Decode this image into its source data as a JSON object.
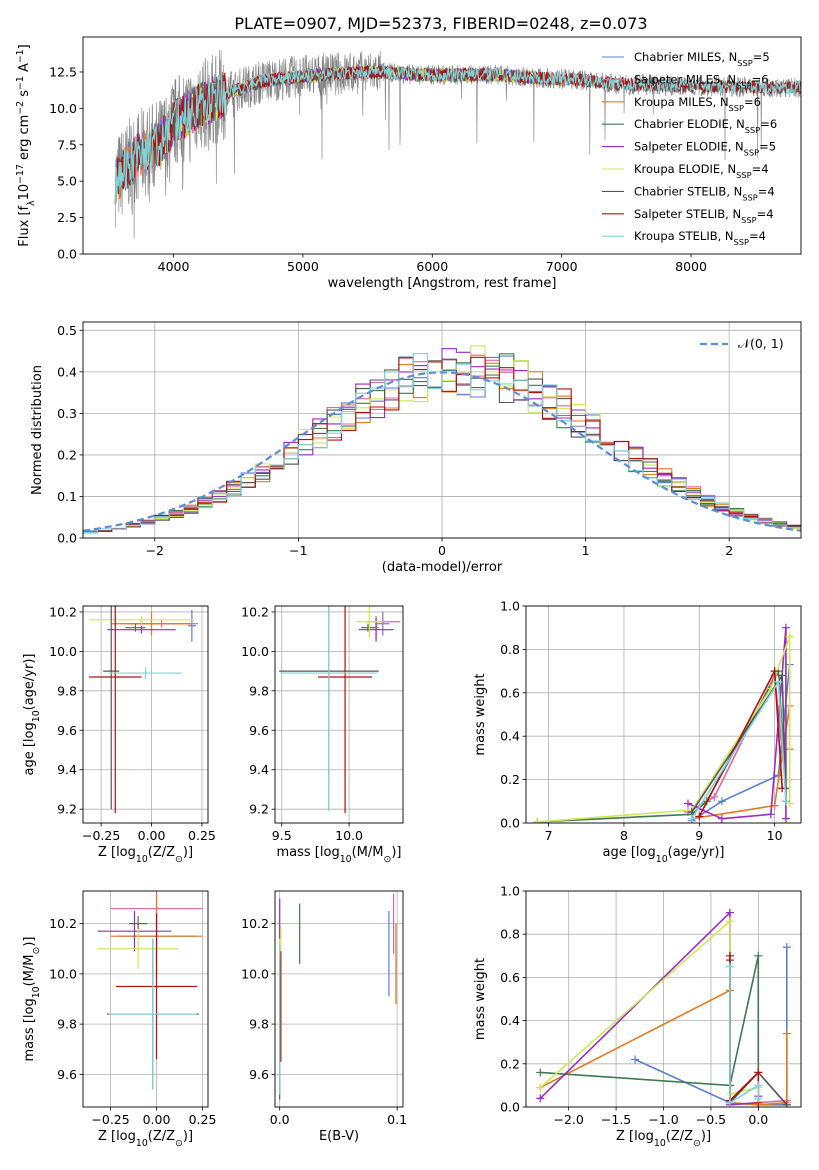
{
  "figure_title": "PLATE=0907, MJD=52373, FIBERID=0248, z=0.073",
  "colors": {
    "Chabrier MILES": "#5b7fd0",
    "Salpeter MILES": "#e066a8",
    "Kroupa MILES": "#e07a1f",
    "Chabrier ELODIE": "#3e7a4e",
    "Salpeter ELODIE": "#9a2ac2",
    "Kroupa ELODIE": "#cce85a",
    "Chabrier STELIB": "#555555",
    "Salpeter STELIB": "#b01010",
    "Kroupa STELIB": "#7fd4d8",
    "data": "#808080",
    "gaussian": "#5b8ed8",
    "grid": "#b0b0b0"
  },
  "chart_data": [
    {
      "id": "spectrum",
      "type": "line",
      "title": "PLATE=0907, MJD=52373, FIBERID=0248, z=0.073",
      "xlabel": "wavelength [Angstrom, rest frame]",
      "ylabel": "Flux [f",
      "ylabel_sub": "λ",
      "ylabel_rest": "10",
      "ylabel_sup1": "−17",
      "ylabel_rest2": " erg cm",
      "ylabel_sup2": "−2",
      "ylabel_rest3": " s",
      "ylabel_sup3": "−1",
      "ylabel_rest4": " A",
      "ylabel_sup4": "−1",
      "ylabel_end": "]",
      "xlim": [
        3300,
        8850
      ],
      "ylim": [
        0,
        14.9
      ],
      "xticks": [
        4000,
        5000,
        6000,
        7000,
        8000
      ],
      "yticks": [
        0.0,
        2.5,
        5.0,
        7.5,
        10.0,
        12.5
      ],
      "ytick_labels": [
        "0.0",
        "2.5",
        "5.0",
        "7.5",
        "10.0",
        "12.5"
      ],
      "legend": [
        {
          "label": "Chabrier MILES, N",
          "sub": "SSP",
          "tail": "=5",
          "key": "Chabrier MILES"
        },
        {
          "label": "Salpeter MILES, N",
          "sub": "SSP",
          "tail": "=6",
          "key": "Salpeter MILES"
        },
        {
          "label": "Kroupa MILES, N",
          "sub": "SSP",
          "tail": "=6",
          "key": "Kroupa MILES"
        },
        {
          "label": "Chabrier ELODIE, N",
          "sub": "SSP",
          "tail": "=6",
          "key": "Chabrier ELODIE"
        },
        {
          "label": "Salpeter ELODIE, N",
          "sub": "SSP",
          "tail": "=5",
          "key": "Salpeter ELODIE"
        },
        {
          "label": "Kroupa ELODIE, N",
          "sub": "SSP",
          "tail": "=4",
          "key": "Kroupa ELODIE"
        },
        {
          "label": "Chabrier STELIB, N",
          "sub": "SSP",
          "tail": "=4",
          "key": "Chabrier STELIB"
        },
        {
          "label": "Salpeter STELIB, N",
          "sub": "SSP",
          "tail": "=4",
          "key": "Salpeter STELIB"
        },
        {
          "label": "Kroupa STELIB, N",
          "sub": "SSP",
          "tail": "=4",
          "key": "Kroupa STELIB"
        }
      ],
      "legend_placement": "top-right",
      "data_range": [
        3550,
        8850
      ],
      "continuum": [
        [
          3550,
          5.0
        ],
        [
          3700,
          6.6
        ],
        [
          3900,
          7.6
        ],
        [
          4000,
          9.0
        ],
        [
          4200,
          10.2
        ],
        [
          4400,
          11.0
        ],
        [
          4700,
          11.9
        ],
        [
          5000,
          12.2
        ],
        [
          5300,
          12.4
        ],
        [
          5600,
          12.5
        ],
        [
          5900,
          12.3
        ],
        [
          6200,
          12.3
        ],
        [
          6500,
          12.3
        ],
        [
          6800,
          12.1
        ],
        [
          7100,
          12.0
        ],
        [
          7400,
          11.7
        ],
        [
          7700,
          11.6
        ],
        [
          8000,
          11.5
        ],
        [
          8300,
          11.5
        ],
        [
          8850,
          11.4
        ]
      ],
      "model_ranges": {
        "Chabrier MILES": [
          3550,
          7400
        ],
        "Salpeter MILES": [
          3550,
          7400
        ],
        "Kroupa MILES": [
          3550,
          7400
        ],
        "Chabrier ELODIE": [
          3900,
          6800
        ],
        "Salpeter ELODIE": [
          3900,
          6800
        ],
        "Kroupa ELODIE": [
          3900,
          6800
        ],
        "Chabrier STELIB": [
          3550,
          8850
        ],
        "Salpeter STELIB": [
          3550,
          8850
        ],
        "Kroupa STELIB": [
          3550,
          8850
        ]
      },
      "grid": false
    },
    {
      "id": "residuals",
      "type": "histogram",
      "xlabel": "(data-model)/error",
      "ylabel": "Normed distribution",
      "xlim": [
        -2.5,
        2.5
      ],
      "ylim": [
        0,
        0.52
      ],
      "xticks": [
        -2,
        -1,
        0,
        1,
        2
      ],
      "xtick_labels": [
        "−2",
        "−1",
        "0",
        "1",
        "2"
      ],
      "yticks": [
        0.0,
        0.1,
        0.2,
        0.3,
        0.4,
        0.5
      ],
      "ytick_labels": [
        "0.0",
        "0.1",
        "0.2",
        "0.3",
        "0.4",
        "0.5"
      ],
      "bin_width": 0.1,
      "legend_label": "𝒩(0, 1)",
      "legend_placement": "top-right",
      "grid": true
    },
    {
      "id": "age-vs-z",
      "type": "errorbar",
      "xlabel": "Z [log",
      "xlabel_sub": "10",
      "xlabel_tail": "(Z/Z",
      "xlabel_sub2": "⊙",
      "xlabel_end": ")]",
      "ylabel": "age  [log",
      "ylabel_sub": "10",
      "ylabel_tail": "(age/yr)]",
      "xlim": [
        -0.34,
        0.28
      ],
      "ylim": [
        9.13,
        10.23
      ],
      "xticks": [
        -0.25,
        0.0,
        0.25
      ],
      "xtick_labels": [
        "−0.25",
        "0.00",
        "0.25"
      ],
      "yticks": [
        9.2,
        9.4,
        9.6,
        9.8,
        10.0,
        10.2
      ],
      "ytick_labels": [
        "9.2",
        "9.4",
        "9.6",
        "9.8",
        "10.0",
        "10.2"
      ],
      "points": [
        {
          "key": "Chabrier MILES",
          "x": 0.2,
          "y": 10.13,
          "xerr": 0.02,
          "yerr": 0.08
        },
        {
          "key": "Salpeter MILES",
          "x": 0.05,
          "y": 10.14,
          "xerr": 0.18,
          "yerr": 0.02
        },
        {
          "key": "Kroupa MILES",
          "x": 0.0,
          "y": 10.14,
          "xerr": 0.2,
          "yerr": 0.06
        },
        {
          "key": "Chabrier ELODIE",
          "x": -0.08,
          "y": 10.12,
          "xerr": 0.05,
          "yerr": 0.02
        },
        {
          "key": "Salpeter ELODIE",
          "x": -0.05,
          "y": 10.11,
          "xerr": 0.17,
          "yerr": 0.02
        },
        {
          "key": "Kroupa ELODIE",
          "x": -0.05,
          "y": 10.16,
          "xerr": 0.26,
          "yerr": 0.02
        },
        {
          "key": "Chabrier STELIB",
          "x": -0.2,
          "y": 9.9,
          "xerr": 0.04,
          "yerr": 0.7
        },
        {
          "key": "Salpeter STELIB",
          "x": -0.18,
          "y": 9.87,
          "xerr": 0.13,
          "yerr": 0.69
        },
        {
          "key": "Kroupa STELIB",
          "x": -0.03,
          "y": 9.89,
          "xerr": 0.18,
          "yerr": 0.03
        }
      ],
      "grid": true
    },
    {
      "id": "age-vs-mass",
      "type": "errorbar",
      "xlabel": "mass [log",
      "xlabel_sub": "10",
      "xlabel_tail": "(M/M",
      "xlabel_sub2": "⊙",
      "xlabel_end": ")]",
      "xlim": [
        9.45,
        10.4
      ],
      "ylim": [
        9.13,
        10.23
      ],
      "xticks": [
        9.5,
        10.0
      ],
      "xtick_labels": [
        "9.5",
        "10.0"
      ],
      "yticks": [
        9.2,
        9.4,
        9.6,
        9.8,
        10.0,
        10.2
      ],
      "ytick_labels": [
        "9.2",
        "9.4",
        "9.6",
        "9.8",
        "10.0",
        "10.2"
      ],
      "points": [
        {
          "key": "Chabrier MILES",
          "x": 10.25,
          "y": 10.14,
          "xerr": 0.05,
          "yerr": 0.06
        },
        {
          "key": "Salpeter MILES",
          "x": 10.25,
          "y": 10.15,
          "xerr": 0.13,
          "yerr": 0.02
        },
        {
          "key": "Kroupa MILES",
          "x": 10.2,
          "y": 10.12,
          "xerr": 0.02,
          "yerr": 0.06
        },
        {
          "key": "Chabrier ELODIE",
          "x": 10.14,
          "y": 10.12,
          "xerr": 0.05,
          "yerr": 0.02
        },
        {
          "key": "Salpeter ELODIE",
          "x": 10.2,
          "y": 10.11,
          "xerr": 0.13,
          "yerr": 0.06
        },
        {
          "key": "Kroupa ELODIE",
          "x": 10.15,
          "y": 10.15,
          "xerr": 0.1,
          "yerr": 0.08
        },
        {
          "key": "Chabrier STELIB",
          "x": 9.85,
          "y": 9.9,
          "xerr": 0.37,
          "yerr": 0.7
        },
        {
          "key": "Salpeter STELIB",
          "x": 9.97,
          "y": 9.87,
          "xerr": 0.2,
          "yerr": 0.69
        },
        {
          "key": "Kroupa STELIB",
          "x": 9.85,
          "y": 9.89,
          "xerr": 0.36,
          "yerr": 0.7
        }
      ],
      "grid": true
    },
    {
      "id": "weight-vs-age",
      "type": "line",
      "xlabel": "age  [log",
      "xlabel_sub": "10",
      "xlabel_tail": "(age/yr)]",
      "ylabel": "mass weight",
      "xlim": [
        6.7,
        10.35
      ],
      "ylim": [
        0,
        1.0
      ],
      "xticks": [
        7,
        8,
        9,
        10
      ],
      "xtick_labels": [
        "7",
        "8",
        "9",
        "10"
      ],
      "yticks": [
        0.0,
        0.2,
        0.4,
        0.6,
        0.8,
        1.0
      ],
      "ytick_labels": [
        "0.0",
        "0.2",
        "0.4",
        "0.6",
        "0.8",
        "1.0"
      ],
      "series": [
        {
          "key": "Chabrier MILES",
          "x": [
            8.9,
            9.3,
            10.05,
            10.2
          ],
          "y": [
            0.01,
            0.1,
            0.22,
            0.73
          ]
        },
        {
          "key": "Salpeter MILES",
          "x": [
            8.85,
            9.2,
            10.0,
            10.15
          ],
          "y": [
            0.05,
            0.12,
            0.68,
            0.16
          ]
        },
        {
          "key": "Kroupa MILES",
          "x": [
            8.9,
            10.0,
            10.2,
            10.2
          ],
          "y": [
            0.02,
            0.08,
            0.54,
            0.34
          ]
        },
        {
          "key": "Chabrier ELODIE",
          "x": [
            6.85,
            8.9,
            9.1,
            10.05,
            10.15
          ],
          "y": [
            0.005,
            0.04,
            0.1,
            0.7,
            0.16
          ]
        },
        {
          "key": "Salpeter ELODIE",
          "x": [
            8.85,
            9.3,
            9.95,
            10.15,
            10.15
          ],
          "y": [
            0.09,
            0.02,
            0.04,
            0.9,
            0.02
          ]
        },
        {
          "key": "Kroupa ELODIE",
          "x": [
            6.85,
            8.9,
            9.95,
            10.2,
            10.2
          ],
          "y": [
            0.005,
            0.06,
            0.62,
            0.86,
            0.09
          ]
        },
        {
          "key": "Chabrier STELIB",
          "x": [
            8.9,
            10.1,
            10.15
          ],
          "y": [
            0.05,
            0.68,
            0.1
          ]
        },
        {
          "key": "Salpeter STELIB",
          "x": [
            9.0,
            10.0,
            10.1
          ],
          "y": [
            0.03,
            0.7,
            0.16
          ]
        },
        {
          "key": "Kroupa STELIB",
          "x": [
            8.9,
            10.05,
            10.15
          ],
          "y": [
            0.02,
            0.65,
            0.1
          ]
        }
      ],
      "grid": true
    },
    {
      "id": "mass-vs-z",
      "type": "errorbar",
      "xlabel": "Z [log",
      "xlabel_sub": "10",
      "xlabel_tail": "(Z/Z",
      "xlabel_sub2": "⊙",
      "xlabel_end": ")]",
      "ylabel": "mass [log",
      "ylabel_sub": "10",
      "ylabel_tail": "(M/M",
      "ylabel_sub2": "⊙",
      "ylabel_end": ")]",
      "xlim": [
        -0.4,
        0.28
      ],
      "ylim": [
        9.47,
        10.33
      ],
      "xticks": [
        -0.25,
        0.0,
        0.25
      ],
      "xtick_labels": [
        "−0.25",
        "0.00",
        "0.25"
      ],
      "yticks": [
        9.6,
        9.8,
        10.0,
        10.2
      ],
      "ytick_labels": [
        "9.6",
        "9.8",
        "10.0",
        "10.2"
      ],
      "points": [
        {
          "key": "Chabrier MILES",
          "x": 0.0,
          "y": 10.15,
          "xerr": 0.21,
          "yerr": 0.1
        },
        {
          "key": "Salpeter MILES",
          "x": 0.0,
          "y": 10.26,
          "xerr": 0.25,
          "yerr": 0.07
        },
        {
          "key": "Kroupa MILES",
          "x": 0.0,
          "y": 10.15,
          "xerr": 0.25,
          "yerr": 0.17
        },
        {
          "key": "Chabrier ELODIE",
          "x": -0.1,
          "y": 10.2,
          "xerr": 0.05,
          "yerr": 0.03
        },
        {
          "key": "Salpeter ELODIE",
          "x": -0.12,
          "y": 10.17,
          "xerr": 0.2,
          "yerr": 0.08
        },
        {
          "key": "Kroupa ELODIE",
          "x": -0.1,
          "y": 10.1,
          "xerr": 0.22,
          "yerr": 0.08
        },
        {
          "key": "Chabrier STELIB",
          "x": -0.02,
          "y": 9.84,
          "xerr": 0.25,
          "yerr": 0.3
        },
        {
          "key": "Salpeter STELIB",
          "x": 0.0,
          "y": 9.95,
          "xerr": 0.22,
          "yerr": 0.29
        },
        {
          "key": "Kroupa STELIB",
          "x": -0.02,
          "y": 9.84,
          "xerr": 0.24,
          "yerr": 0.3
        }
      ],
      "grid": true
    },
    {
      "id": "mass-vs-ebv",
      "type": "errorbar",
      "xlabel": "E(B-V)",
      "xlim": [
        -0.004,
        0.105
      ],
      "ylim": [
        9.47,
        10.33
      ],
      "xticks": [
        0.0,
        0.1
      ],
      "xtick_labels": [
        "0.0",
        "0.1"
      ],
      "yticks": [
        9.6,
        9.8,
        10.0,
        10.2
      ],
      "ytick_labels": [
        "9.6",
        "9.8",
        "10.0",
        "10.2"
      ],
      "points": [
        {
          "key": "Chabrier MILES",
          "x": 0.093,
          "y": 10.08,
          "xerr": 0.0,
          "yerr": 0.17
        },
        {
          "key": "Salpeter MILES",
          "x": 0.097,
          "y": 10.2,
          "xerr": 0.0,
          "yerr": 0.12
        },
        {
          "key": "Kroupa MILES",
          "x": 0.099,
          "y": 10.04,
          "xerr": 0.0,
          "yerr": 0.16
        },
        {
          "key": "Chabrier ELODIE",
          "x": 0.017,
          "y": 10.16,
          "xerr": 0.0,
          "yerr": 0.12
        },
        {
          "key": "Salpeter ELODIE",
          "x": 0.0,
          "y": 10.22,
          "xerr": 0.0,
          "yerr": 0.08
        },
        {
          "key": "Kroupa ELODIE",
          "x": 0.001,
          "y": 10.11,
          "xerr": 0.0,
          "yerr": 0.08
        },
        {
          "key": "Chabrier STELIB",
          "x": 0.0,
          "y": 9.78,
          "xerr": 0.0,
          "yerr": 0.28
        },
        {
          "key": "Salpeter STELIB",
          "x": 0.001,
          "y": 9.87,
          "xerr": 0.0,
          "yerr": 0.22
        },
        {
          "key": "Kroupa STELIB",
          "x": 0.0,
          "y": 9.82,
          "xerr": 0.0,
          "yerr": 0.3
        }
      ],
      "grid": true
    },
    {
      "id": "weight-vs-z",
      "type": "line",
      "xlabel": "Z [log",
      "xlabel_sub": "10",
      "xlabel_tail": "(Z/Z",
      "xlabel_sub2": "⊙",
      "xlabel_end": ")]",
      "ylabel": "mass weight",
      "xlim": [
        -2.45,
        0.45
      ],
      "ylim": [
        0,
        1.0
      ],
      "xticks": [
        -2.0,
        -1.5,
        -1.0,
        -0.5,
        0.0
      ],
      "xtick_labels": [
        "−2.0",
        "−1.5",
        "−1.0",
        "−0.5",
        "0.0"
      ],
      "yticks": [
        0.0,
        0.2,
        0.4,
        0.6,
        0.8,
        1.0
      ],
      "ytick_labels": [
        "0.0",
        "0.2",
        "0.4",
        "0.6",
        "0.8",
        "1.0"
      ],
      "series": [
        {
          "key": "Chabrier MILES",
          "x": [
            -1.3,
            -0.3,
            0.0,
            0.3,
            0.3
          ],
          "y": [
            0.22,
            0.02,
            0.01,
            0.01,
            0.74
          ]
        },
        {
          "key": "Salpeter MILES",
          "x": [
            -0.3,
            0.0,
            0.3
          ],
          "y": [
            0.01,
            0.02,
            0.03
          ]
        },
        {
          "key": "Kroupa MILES",
          "x": [
            -2.3,
            -0.3,
            -0.3,
            0.0,
            0.3,
            0.3
          ],
          "y": [
            0.09,
            0.54,
            0.02,
            0.01,
            0.02,
            0.34
          ]
        },
        {
          "key": "Chabrier ELODIE",
          "x": [
            -2.3,
            -0.3,
            0.0,
            0.0
          ],
          "y": [
            0.16,
            0.1,
            0.7,
            0.02
          ]
        },
        {
          "key": "Salpeter ELODIE",
          "x": [
            -2.3,
            -0.3,
            -0.3,
            0.0,
            0.0
          ],
          "y": [
            0.04,
            0.9,
            0.01,
            0.02,
            0.05
          ]
        },
        {
          "key": "Kroupa ELODIE",
          "x": [
            -2.3,
            -0.3,
            -0.3,
            0.0,
            0.0
          ],
          "y": [
            0.09,
            0.86,
            0.06,
            0.09,
            0.02
          ]
        },
        {
          "key": "Chabrier STELIB",
          "x": [
            -0.3,
            -0.3,
            0.0,
            0.3
          ],
          "y": [
            0.68,
            0.02,
            0.16,
            0.01
          ]
        },
        {
          "key": "Salpeter STELIB",
          "x": [
            -0.3,
            -0.3,
            0.0,
            0.0
          ],
          "y": [
            0.7,
            0.03,
            0.16,
            0.02
          ]
        },
        {
          "key": "Kroupa STELIB",
          "x": [
            -0.3,
            -0.3,
            0.0,
            0.0
          ],
          "y": [
            0.65,
            0.02,
            0.1,
            0.04
          ]
        }
      ],
      "grid": true
    }
  ]
}
